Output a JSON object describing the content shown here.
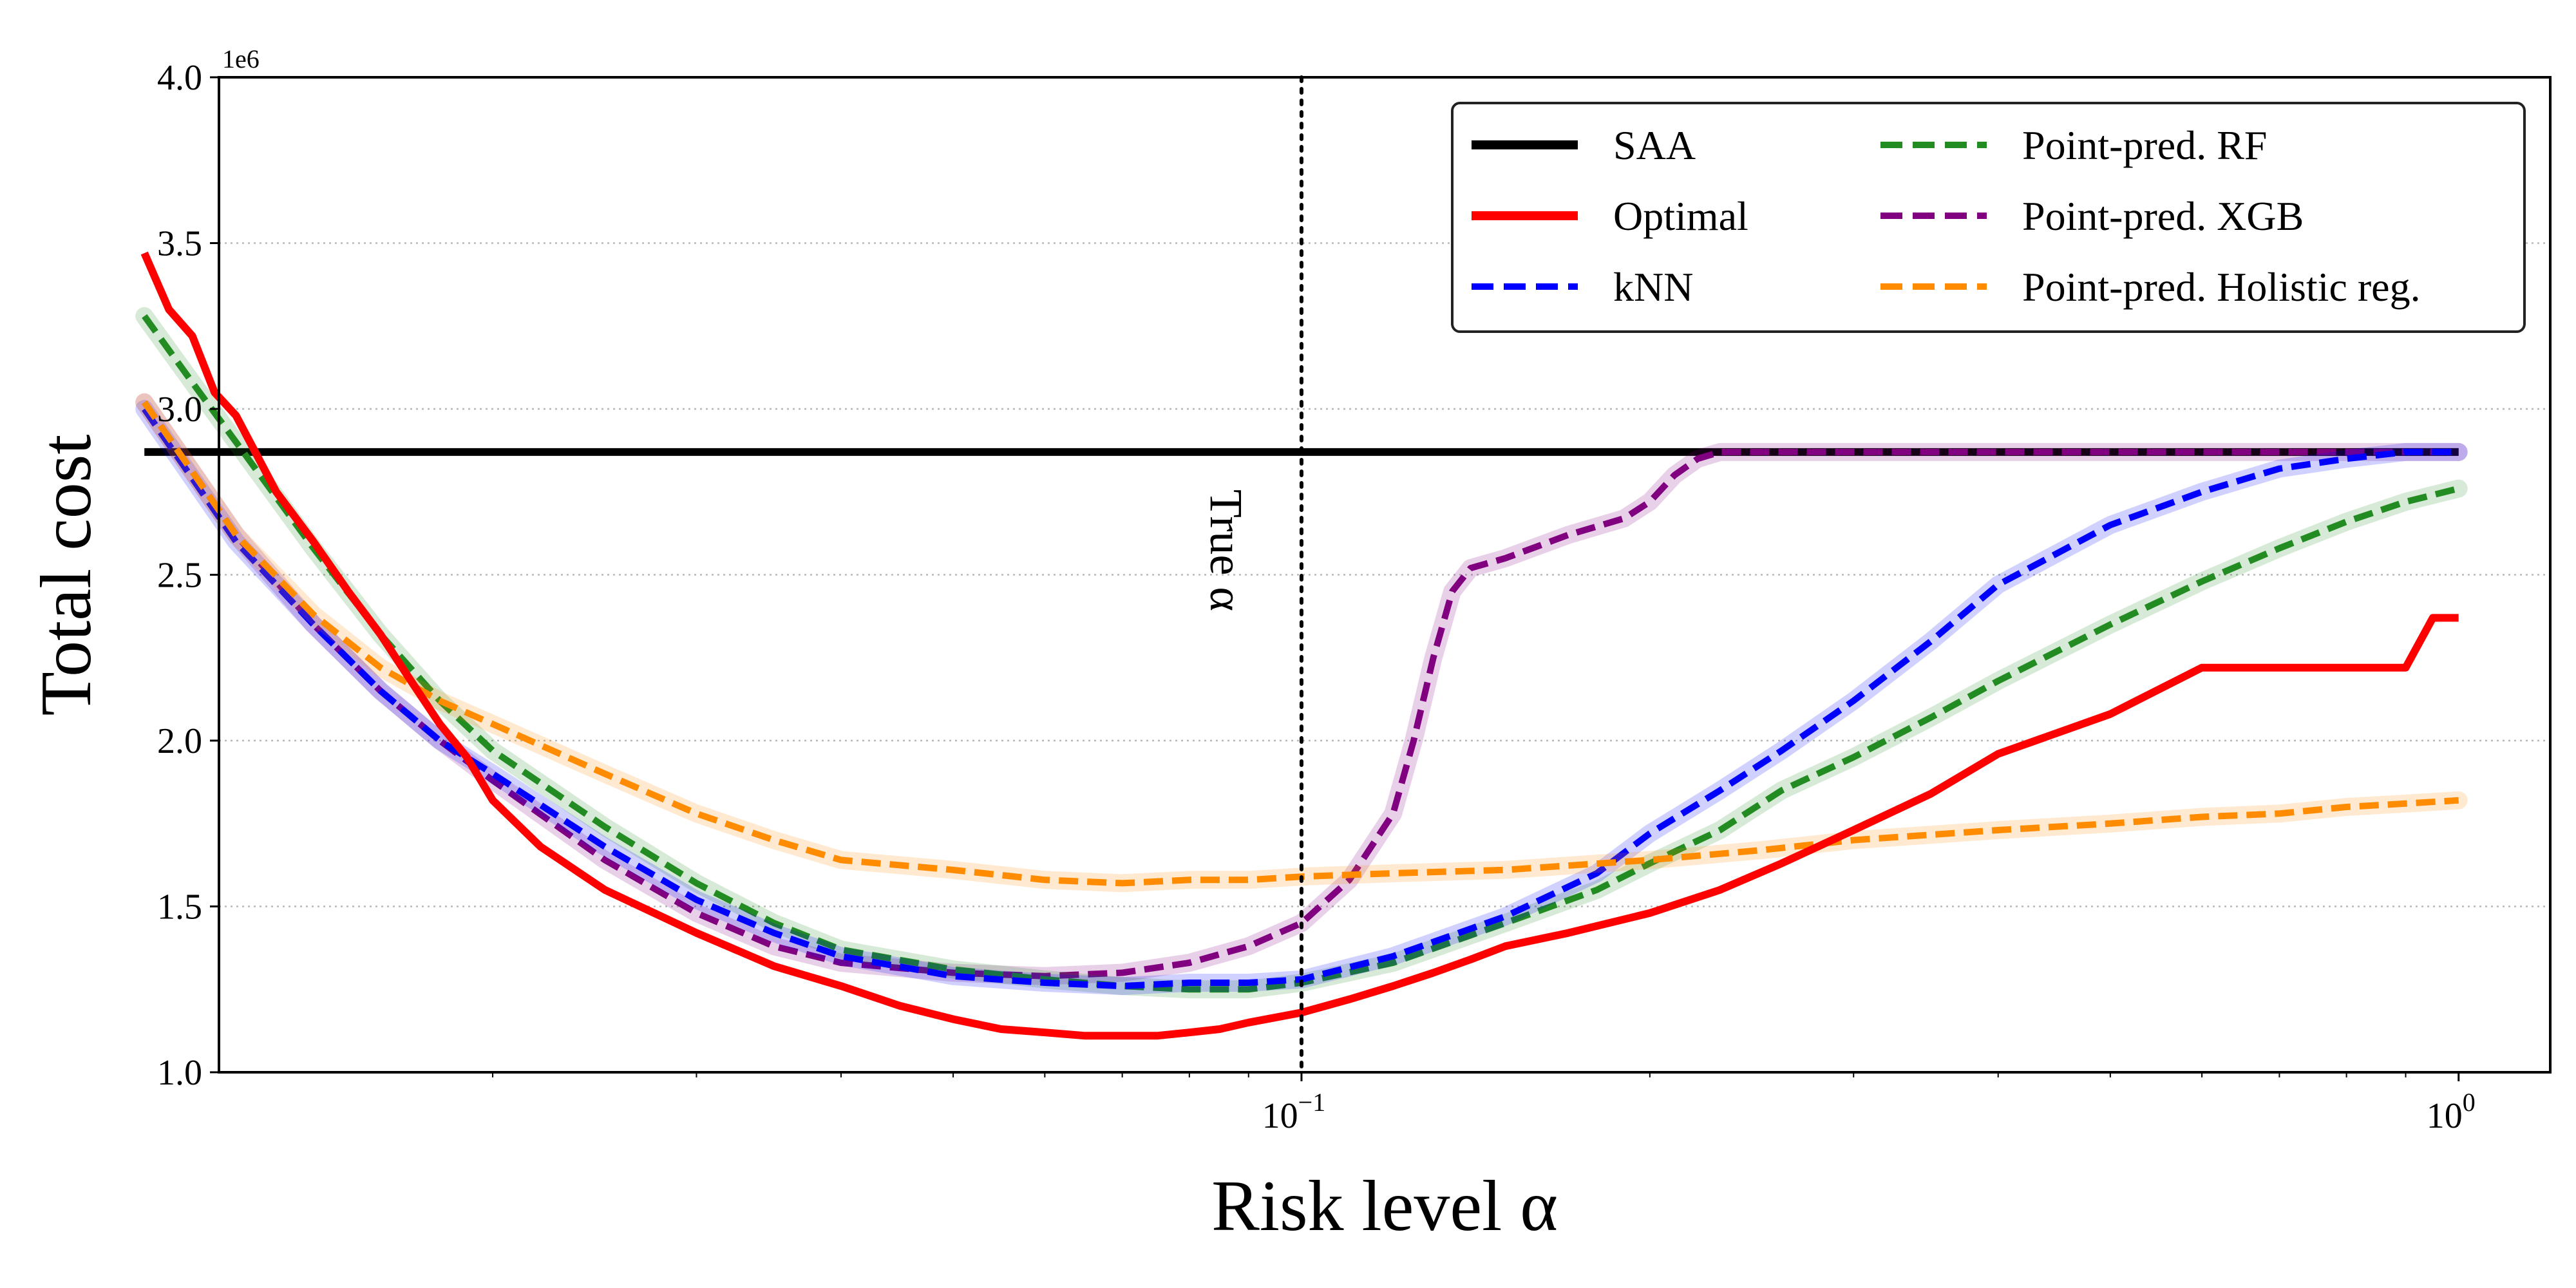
{
  "chart_data": {
    "type": "line",
    "xlabel": "Risk level α",
    "ylabel": "Total cost",
    "xscale": "log",
    "xlim": [
      0.0116,
      1.2
    ],
    "ylim": [
      1.0,
      4.0
    ],
    "y_multiplier_label": "1e6",
    "y_ticks": [
      "1.0",
      "1.5",
      "2.0",
      "2.5",
      "3.0",
      "3.5",
      "4.0"
    ],
    "x_ticks": [
      {
        "value": 0.1,
        "base": "10",
        "exp": "−1"
      },
      {
        "value": 1,
        "base": "10",
        "exp": "0"
      }
    ],
    "grid": "horizontal dotted",
    "legend_position": "top-right",
    "annotation": {
      "text": "True α",
      "x": 0.1
    },
    "series": [
      {
        "name": "SAA",
        "style": "solid",
        "color": "#000000",
        "x": [
          0.01,
          1.0
        ],
        "y": [
          2.87,
          2.87
        ]
      },
      {
        "name": "Optimal",
        "style": "solid",
        "color": "#ff0000",
        "x": [
          0.01,
          0.0105,
          0.011,
          0.0115,
          0.012,
          0.013,
          0.014,
          0.015,
          0.016,
          0.017,
          0.018,
          0.019,
          0.02,
          0.022,
          0.025,
          0.03,
          0.035,
          0.04,
          0.045,
          0.05,
          0.055,
          0.06,
          0.065,
          0.07,
          0.075,
          0.08,
          0.085,
          0.09,
          0.1,
          0.11,
          0.12,
          0.13,
          0.14,
          0.15,
          0.17,
          0.2,
          0.23,
          0.26,
          0.3,
          0.35,
          0.4,
          0.5,
          0.6,
          0.7,
          0.8,
          0.9,
          0.95,
          1.0
        ],
        "y": [
          3.47,
          3.3,
          3.22,
          3.05,
          2.98,
          2.75,
          2.6,
          2.45,
          2.32,
          2.18,
          2.05,
          1.95,
          1.82,
          1.68,
          1.55,
          1.42,
          1.32,
          1.26,
          1.2,
          1.16,
          1.13,
          1.12,
          1.11,
          1.11,
          1.11,
          1.12,
          1.13,
          1.15,
          1.18,
          1.22,
          1.26,
          1.3,
          1.34,
          1.38,
          1.42,
          1.48,
          1.55,
          1.63,
          1.73,
          1.84,
          1.96,
          2.08,
          2.22,
          2.22,
          2.22,
          2.22,
          2.37,
          2.37
        ]
      },
      {
        "name": "kNN",
        "style": "dashed",
        "color": "#0000ff",
        "x": [
          0.01,
          0.012,
          0.014,
          0.016,
          0.018,
          0.02,
          0.025,
          0.03,
          0.035,
          0.04,
          0.05,
          0.06,
          0.07,
          0.08,
          0.09,
          0.1,
          0.12,
          0.15,
          0.18,
          0.2,
          0.23,
          0.26,
          0.3,
          0.35,
          0.4,
          0.5,
          0.6,
          0.7,
          0.8,
          0.9,
          1.0
        ],
        "y": [
          3.0,
          2.6,
          2.35,
          2.15,
          2.0,
          1.9,
          1.68,
          1.52,
          1.42,
          1.35,
          1.29,
          1.27,
          1.26,
          1.27,
          1.27,
          1.28,
          1.35,
          1.47,
          1.6,
          1.72,
          1.85,
          1.97,
          2.12,
          2.3,
          2.47,
          2.65,
          2.75,
          2.82,
          2.85,
          2.87,
          2.87
        ]
      },
      {
        "name": "Point-pred. RF",
        "style": "dashed",
        "color": "#228b22",
        "x": [
          0.01,
          0.011,
          0.012,
          0.014,
          0.016,
          0.018,
          0.02,
          0.025,
          0.03,
          0.035,
          0.04,
          0.05,
          0.06,
          0.07,
          0.08,
          0.09,
          0.1,
          0.12,
          0.15,
          0.18,
          0.2,
          0.23,
          0.26,
          0.3,
          0.35,
          0.4,
          0.5,
          0.6,
          0.7,
          0.8,
          0.9,
          1.0
        ],
        "y": [
          3.28,
          3.08,
          2.9,
          2.58,
          2.32,
          2.12,
          1.97,
          1.74,
          1.57,
          1.45,
          1.37,
          1.31,
          1.28,
          1.26,
          1.25,
          1.25,
          1.27,
          1.33,
          1.45,
          1.55,
          1.63,
          1.73,
          1.85,
          1.95,
          2.07,
          2.18,
          2.35,
          2.48,
          2.58,
          2.66,
          2.72,
          2.76
        ]
      },
      {
        "name": "Point-pred. XGB",
        "style": "dashed",
        "color": "#800080",
        "x": [
          0.01,
          0.012,
          0.014,
          0.016,
          0.018,
          0.02,
          0.025,
          0.03,
          0.035,
          0.04,
          0.05,
          0.06,
          0.07,
          0.08,
          0.09,
          0.1,
          0.11,
          0.12,
          0.125,
          0.13,
          0.135,
          0.14,
          0.15,
          0.17,
          0.19,
          0.2,
          0.21,
          0.22,
          0.23,
          0.25,
          0.3,
          0.4,
          0.5,
          0.7,
          1.0
        ],
        "y": [
          3.02,
          2.62,
          2.35,
          2.15,
          2.0,
          1.88,
          1.64,
          1.48,
          1.38,
          1.33,
          1.3,
          1.29,
          1.3,
          1.33,
          1.38,
          1.45,
          1.58,
          1.78,
          2.0,
          2.25,
          2.45,
          2.52,
          2.55,
          2.62,
          2.67,
          2.72,
          2.8,
          2.85,
          2.87,
          2.87,
          2.87,
          2.87,
          2.87,
          2.87,
          2.87
        ]
      },
      {
        "name": "Point-pred. Holistic reg.",
        "style": "dashed",
        "color": "#ff8c00",
        "x": [
          0.01,
          0.012,
          0.014,
          0.016,
          0.018,
          0.02,
          0.025,
          0.03,
          0.035,
          0.04,
          0.05,
          0.06,
          0.07,
          0.08,
          0.09,
          0.1,
          0.12,
          0.15,
          0.2,
          0.25,
          0.3,
          0.4,
          0.5,
          0.6,
          0.7,
          0.8,
          0.9,
          1.0
        ],
        "y": [
          3.02,
          2.62,
          2.38,
          2.22,
          2.12,
          2.05,
          1.9,
          1.78,
          1.7,
          1.64,
          1.61,
          1.58,
          1.57,
          1.58,
          1.58,
          1.59,
          1.6,
          1.61,
          1.64,
          1.67,
          1.7,
          1.73,
          1.75,
          1.77,
          1.78,
          1.8,
          1.81,
          1.82
        ]
      }
    ]
  }
}
